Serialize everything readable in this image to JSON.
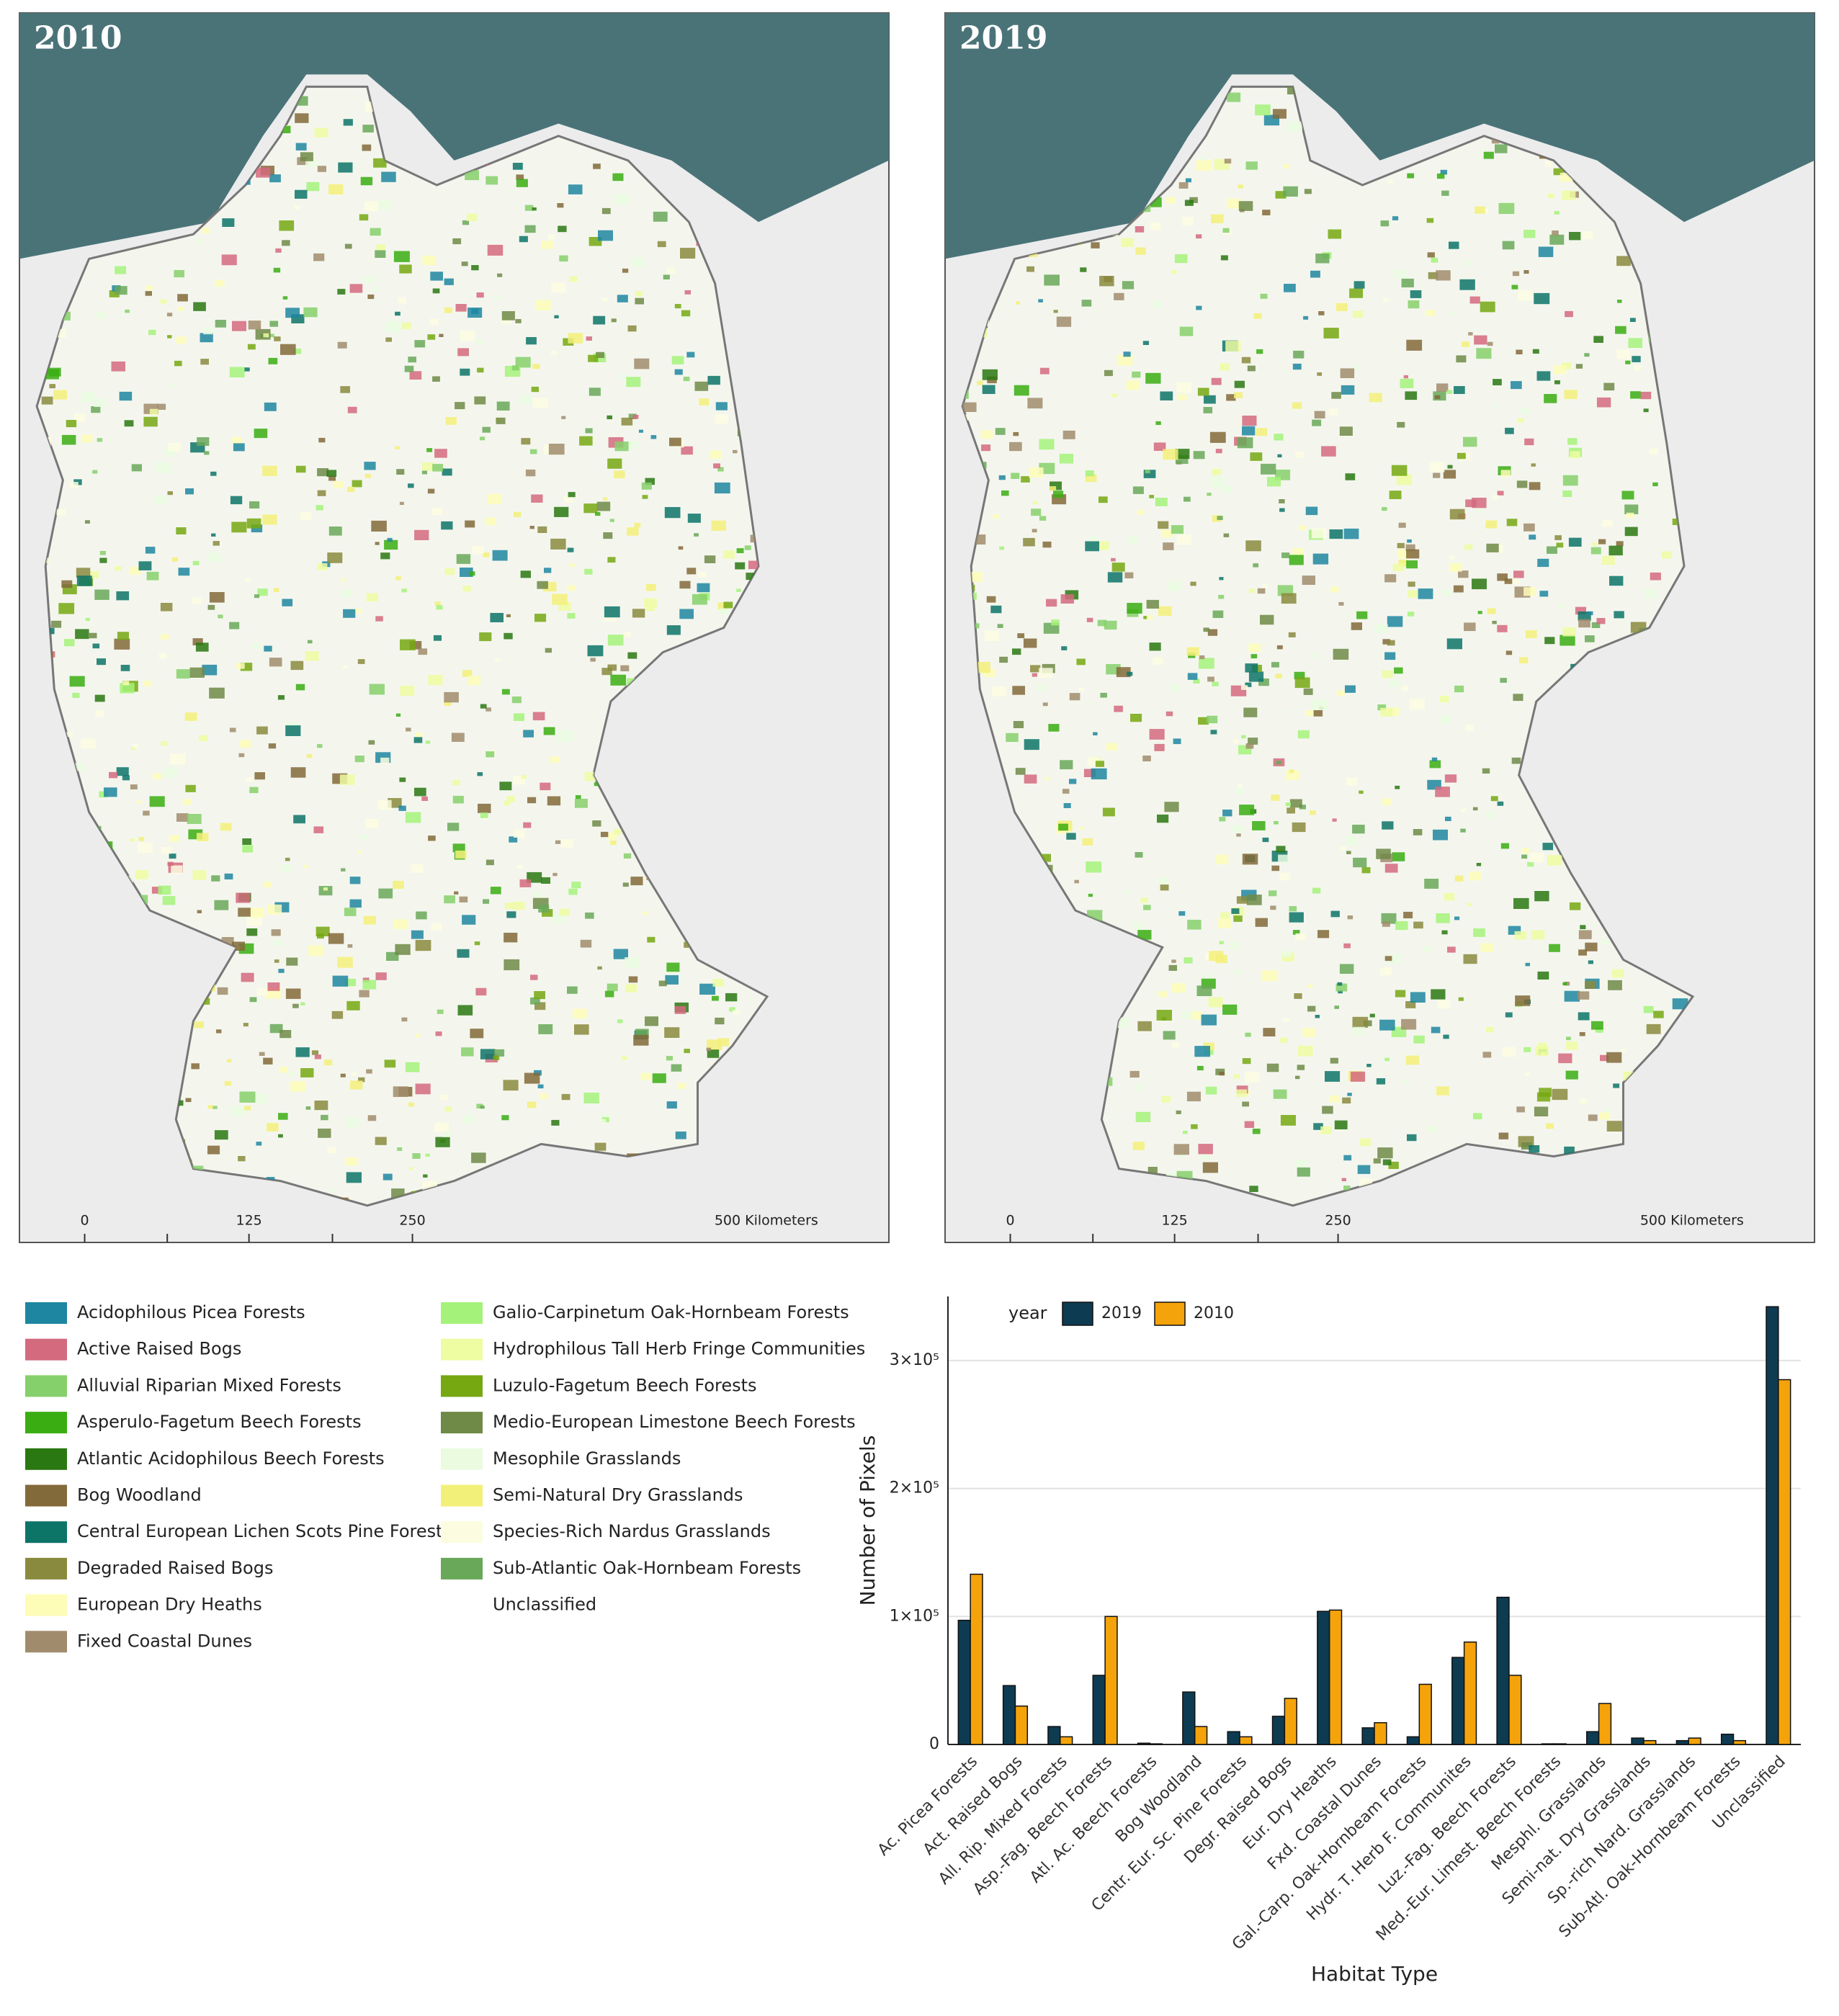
{
  "maps": [
    {
      "label": "2010",
      "scale_labels": [
        "0",
        "125",
        "250",
        "500 Kilometers"
      ]
    },
    {
      "label": "2019",
      "scale_labels": [
        "0",
        "125",
        "250",
        "500 Kilometers"
      ]
    }
  ],
  "legend": {
    "items": [
      {
        "name": "Acidophilous Picea Forests",
        "color": "#1e86a0"
      },
      {
        "name": "Active Raised Bogs",
        "color": "#d36a7e"
      },
      {
        "name": "Alluvial Riparian Mixed Forests",
        "color": "#86d06b"
      },
      {
        "name": "Asperulo-Fagetum Beech Forests",
        "color": "#3aad12"
      },
      {
        "name": "Atlantic Acidophilous Beech Forests",
        "color": "#2a7812"
      },
      {
        "name": "Bog Woodland",
        "color": "#836a3a"
      },
      {
        "name": "Central European Lichen Scots Pine Forests",
        "color": "#0d7468"
      },
      {
        "name": "Degraded Raised Bogs",
        "color": "#8a8a3e"
      },
      {
        "name": "European Dry Heaths",
        "color": "#fdfdb8"
      },
      {
        "name": "Fixed Coastal Dunes",
        "color": "#a08c6c"
      },
      {
        "name": "Galio-Carpinetum Oak-Hornbeam Forests",
        "color": "#a4f27a"
      },
      {
        "name": "Hydrophilous Tall Herb Fringe Communities",
        "color": "#eefca2"
      },
      {
        "name": "Luzulo-Fagetum Beech Forests",
        "color": "#76a812"
      },
      {
        "name": "Medio-European Limestone Beech Forests",
        "color": "#6e8a46"
      },
      {
        "name": "Mesophile Grasslands",
        "color": "#eafbe0"
      },
      {
        "name": "Semi-Natural Dry Grasslands",
        "color": "#f3f07a"
      },
      {
        "name": "Species-Rich Nardus Grasslands",
        "color": "#fcfde0"
      },
      {
        "name": "Sub-Atlantic Oak-Hornbeam Forests",
        "color": "#68a858"
      },
      {
        "name": "Unclassified"
      }
    ]
  },
  "chart_data": {
    "type": "bar",
    "x_label": "Habitat Type",
    "y_label": "Number of Pixels",
    "legend_title": "year",
    "legend": "top-left",
    "grid": true,
    "categories": [
      "Ac. Picea Forests",
      "Act. Raised Bogs",
      "All. Rip. Mixed Forests",
      "Asp.-Fag. Beech Forests",
      "Atl. Ac. Beech Forests",
      "Bog Woodland",
      "Centr. Eur. Sc. Pine Forests",
      "Degr. Raised Bogs",
      "Eur. Dry Heaths",
      "Fxd. Coastal Dunes",
      "Gal.-Carp. Oak-Hornbeam Forests",
      "Hydr. T. Herb F. Communites",
      "Luz.-Fag. Beech Forests",
      "Med.-Eur. Limest. Beech Forests",
      "Mesphl. Grasslands",
      "Semi-nat. Dry Grasslands",
      "Sp.-rich Nard. Grasslands",
      "Sub-Atl. Oak-Hornbeam Forests",
      "Unclassified"
    ],
    "series": [
      {
        "name": "2019",
        "color": "#0d3b52",
        "values": [
          97000,
          46000,
          14000,
          54000,
          1000,
          41000,
          10000,
          22000,
          104000,
          13000,
          6000,
          68000,
          115000,
          500,
          10000,
          5000,
          3000,
          8000,
          342000
        ]
      },
      {
        "name": "2010",
        "color": "#f5a30a",
        "values": [
          133000,
          30000,
          6000,
          100000,
          500,
          14000,
          6000,
          36000,
          105000,
          17000,
          47000,
          80000,
          54000,
          500,
          32000,
          3000,
          5000,
          3000,
          285000
        ]
      }
    ],
    "ylim": [
      0,
      350000
    ],
    "yticks": [
      0,
      {
        "value": 100000,
        "label": "1×10⁵"
      },
      {
        "value": 200000,
        "label": "2×10⁵"
      },
      {
        "value": 300000,
        "label": "3×10⁵"
      }
    ]
  }
}
